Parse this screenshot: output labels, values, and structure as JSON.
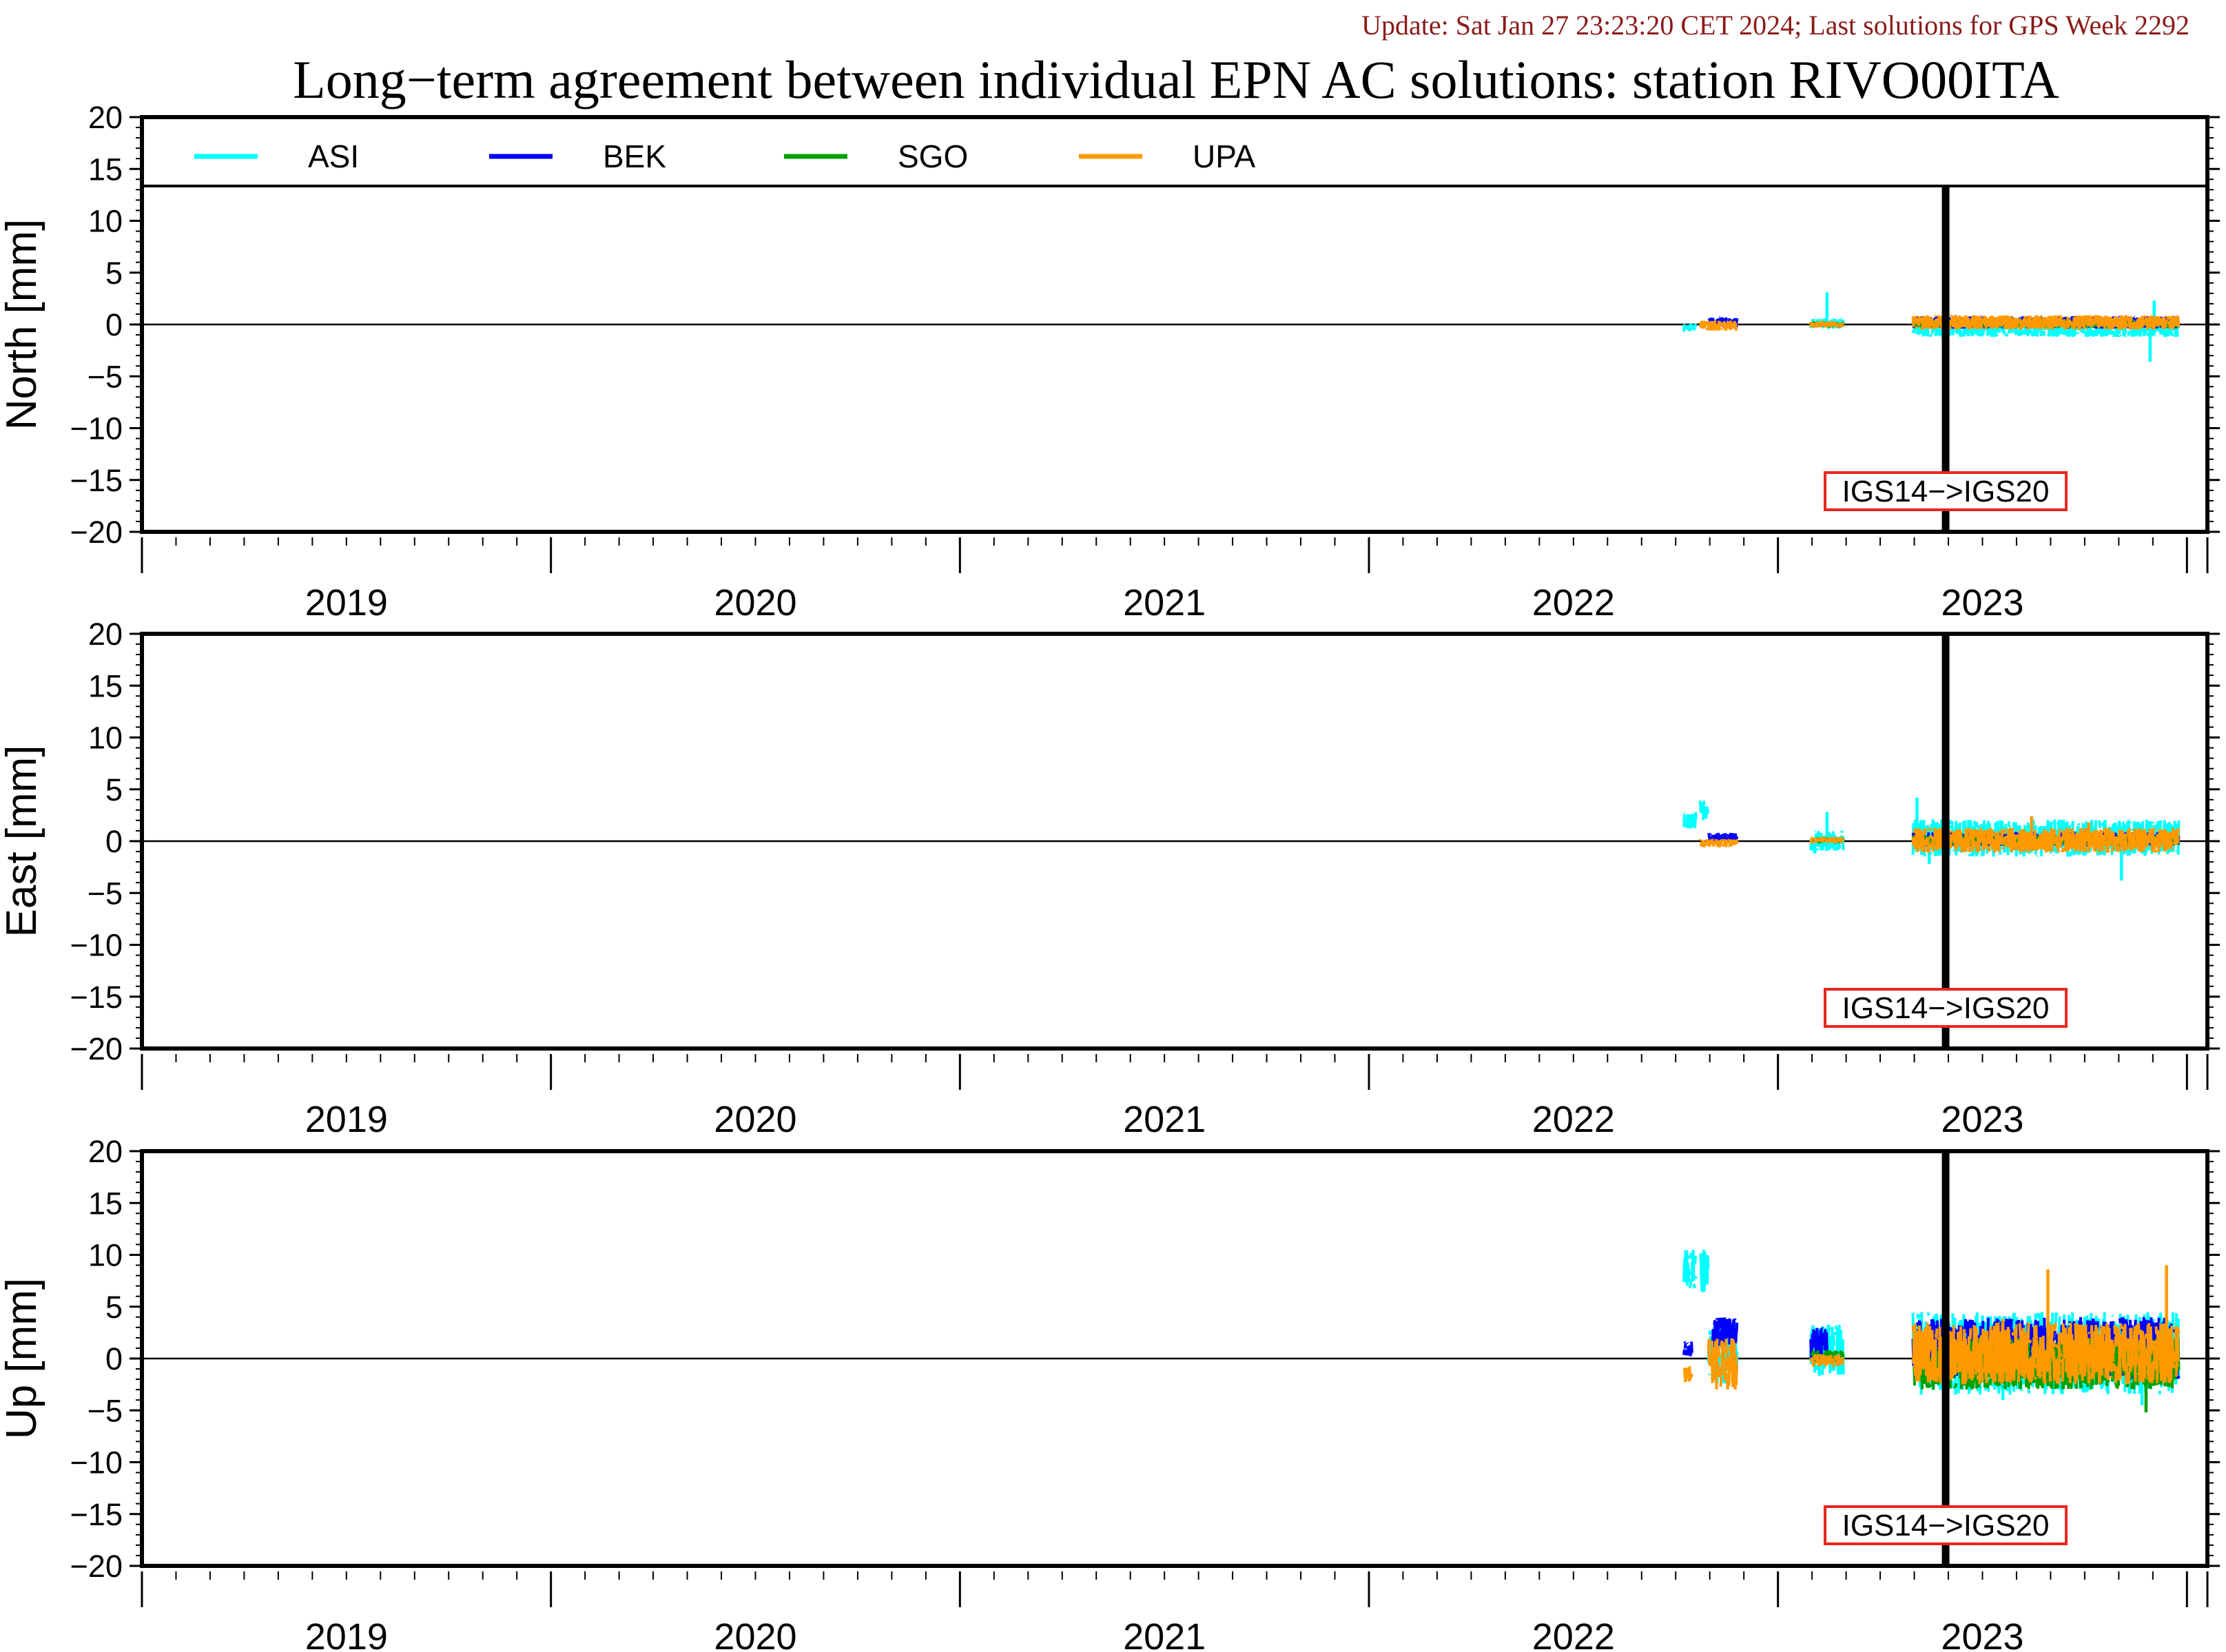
{
  "header": {
    "update": "Update: Sat Jan 27 23:23:20 CET 2024; Last solutions for GPS Week 2292",
    "title": "Long−term agreement between individual EPN AC solutions: station RIVO00ITA"
  },
  "legend": [
    {
      "name": "ASI",
      "color": "#00ffff"
    },
    {
      "name": "BEK",
      "color": "#0000ff"
    },
    {
      "name": "SGO",
      "color": "#00a000"
    },
    {
      "name": "UPA",
      "color": "#ff9900"
    }
  ],
  "marker": {
    "label": "IGS14−>IGS20",
    "date": 2022.91
  },
  "chart_data": [
    {
      "type": "line",
      "component": "North",
      "ylabel": "North [mm]",
      "ylim": [
        -20,
        20
      ],
      "xlim": [
        2018.5,
        2023.55
      ],
      "yticks": [
        20,
        15,
        10,
        5,
        0,
        -5,
        -10,
        -15,
        -20
      ],
      "ytick_labels": [
        "20",
        "15",
        "10",
        "5",
        "0",
        "−5",
        "−10",
        "−15",
        "−20"
      ],
      "year_labels": [
        "2019",
        "2020",
        "2021",
        "2022",
        "2023"
      ],
      "legend_placement": "top-left, inside",
      "series": [
        {
          "name": "ASI",
          "segments": [
            {
              "range": [
                2022.27,
                2022.3
              ],
              "value": -0.3,
              "spread": 0.4
            },
            {
              "range": [
                2022.58,
                2022.66
              ],
              "value": 0.1,
              "spread": 0.5,
              "spikes": [
                [
                  2022.62,
                  3.1
                ]
              ]
            },
            {
              "range": [
                2022.83,
                2023.48
              ],
              "value": -0.4,
              "spread": 0.8,
              "spikes": [
                [
                  2023.41,
                  -3.6
                ],
                [
                  2023.42,
                  2.3
                ]
              ]
            }
          ]
        },
        {
          "name": "BEK",
          "segments": [
            {
              "range": [
                2022.33,
                2022.4
              ],
              "value": 0.2,
              "spread": 0.5
            },
            {
              "range": [
                2022.83,
                2023.48
              ],
              "value": 0.2,
              "spread": 0.6
            }
          ]
        },
        {
          "name": "SGO",
          "segments": [
            {
              "range": [
                2022.58,
                2022.66
              ],
              "value": 0.0,
              "spread": 0.3
            },
            {
              "range": [
                2022.83,
                2023.48
              ],
              "value": 0.1,
              "spread": 0.4
            }
          ]
        },
        {
          "name": "UPA",
          "segments": [
            {
              "range": [
                2022.31,
                2022.4
              ],
              "value": -0.1,
              "spread": 0.5
            },
            {
              "range": [
                2022.58,
                2022.66
              ],
              "value": 0.0,
              "spread": 0.3
            },
            {
              "range": [
                2022.83,
                2023.48
              ],
              "value": 0.2,
              "spread": 0.7
            }
          ]
        }
      ]
    },
    {
      "type": "line",
      "component": "East",
      "ylabel": "East [mm]",
      "ylim": [
        -20,
        20
      ],
      "xlim": [
        2018.5,
        2023.55
      ],
      "yticks": [
        20,
        15,
        10,
        5,
        0,
        -5,
        -10,
        -15,
        -20
      ],
      "ytick_labels": [
        "20",
        "15",
        "10",
        "5",
        "0",
        "−5",
        "−10",
        "−15",
        "−20"
      ],
      "year_labels": [
        "2019",
        "2020",
        "2021",
        "2022",
        "2023"
      ],
      "series": [
        {
          "name": "ASI",
          "segments": [
            {
              "range": [
                2022.27,
                2022.3
              ],
              "value": 2.0,
              "spread": 0.8
            },
            {
              "range": [
                2022.31,
                2022.33
              ],
              "value": 3.0,
              "spread": 1.0
            },
            {
              "range": [
                2022.58,
                2022.66
              ],
              "value": 0.0,
              "spread": 1.0,
              "spikes": [
                [
                  2022.62,
                  2.8
                ],
                [
                  2022.59,
                  -1.2
                ]
              ]
            },
            {
              "range": [
                2022.83,
                2023.48
              ],
              "value": 0.3,
              "spread": 1.8,
              "spikes": [
                [
                  2022.84,
                  4.2
                ],
                [
                  2023.34,
                  -3.8
                ],
                [
                  2022.87,
                  -2.2
                ]
              ]
            }
          ]
        },
        {
          "name": "BEK",
          "segments": [
            {
              "range": [
                2022.33,
                2022.4
              ],
              "value": 0.3,
              "spread": 0.5
            },
            {
              "range": [
                2022.83,
                2023.48
              ],
              "value": 0.2,
              "spread": 0.7
            }
          ]
        },
        {
          "name": "SGO",
          "segments": [
            {
              "range": [
                2022.58,
                2022.66
              ],
              "value": 0.1,
              "spread": 0.3
            },
            {
              "range": [
                2022.83,
                2023.48
              ],
              "value": 0.1,
              "spread": 0.5
            }
          ]
        },
        {
          "name": "UPA",
          "segments": [
            {
              "range": [
                2022.31,
                2022.4
              ],
              "value": -0.2,
              "spread": 0.4
            },
            {
              "range": [
                2022.58,
                2022.66
              ],
              "value": 0.1,
              "spread": 0.3
            },
            {
              "range": [
                2022.83,
                2023.48
              ],
              "value": 0.1,
              "spread": 1.2,
              "spikes": [
                [
                  2023.12,
                  2.4
                ],
                [
                  2023.26,
                  1.8
                ]
              ]
            }
          ]
        }
      ]
    },
    {
      "type": "line",
      "component": "Up",
      "ylabel": "Up [mm]",
      "ylim": [
        -20,
        20
      ],
      "xlim": [
        2018.5,
        2023.55
      ],
      "yticks": [
        20,
        15,
        10,
        5,
        0,
        -5,
        -10,
        -15,
        -20
      ],
      "ytick_labels": [
        "20",
        "15",
        "10",
        "5",
        "0",
        "−5",
        "−10",
        "−15",
        "−20"
      ],
      "year_labels": [
        "2019",
        "2020",
        "2021",
        "2022",
        "2023"
      ],
      "series": [
        {
          "name": "ASI",
          "segments": [
            {
              "range": [
                2022.27,
                2022.3
              ],
              "value": 8.5,
              "spread": 2.0
            },
            {
              "range": [
                2022.31,
                2022.33
              ],
              "value": 8.5,
              "spread": 2.2
            },
            {
              "range": [
                2022.33,
                2022.4
              ],
              "value": 0.5,
              "spread": 3.0
            },
            {
              "range": [
                2022.58,
                2022.66
              ],
              "value": 0.8,
              "spread": 2.5
            },
            {
              "range": [
                2022.83,
                2023.48
              ],
              "value": 0.5,
              "spread": 4.0,
              "spikes": [
                [
                  2023.39,
                  -4.5
                ],
                [
                  2023.05,
                  -4.0
                ]
              ]
            }
          ]
        },
        {
          "name": "BEK",
          "segments": [
            {
              "range": [
                2022.27,
                2022.29
              ],
              "value": 1.0,
              "spread": 0.8
            },
            {
              "range": [
                2022.34,
                2022.4
              ],
              "value": 2.5,
              "spread": 1.5
            },
            {
              "range": [
                2022.58,
                2022.62
              ],
              "value": 1.5,
              "spread": 1.5
            },
            {
              "range": [
                2022.83,
                2023.48
              ],
              "value": 1.0,
              "spread": 3.0
            }
          ]
        },
        {
          "name": "SGO",
          "segments": [
            {
              "range": [
                2022.58,
                2022.66
              ],
              "value": 0.2,
              "spread": 0.6
            },
            {
              "range": [
                2022.83,
                2023.48
              ],
              "value": -0.5,
              "spread": 2.5,
              "spikes": [
                [
                  2023.4,
                  -5.2
                ]
              ]
            }
          ]
        },
        {
          "name": "UPA",
          "segments": [
            {
              "range": [
                2022.27,
                2022.29
              ],
              "value": -1.5,
              "spread": 0.8
            },
            {
              "range": [
                2022.33,
                2022.4
              ],
              "value": -0.5,
              "spread": 2.5
            },
            {
              "range": [
                2022.58,
                2022.66
              ],
              "value": -0.2,
              "spread": 0.6
            },
            {
              "range": [
                2022.83,
                2023.48
              ],
              "value": 0.5,
              "spread": 3.0,
              "spikes": [
                [
                  2023.16,
                  8.6
                ],
                [
                  2023.45,
                  9.0
                ],
                [
                  2023.05,
                  3.8
                ]
              ]
            }
          ]
        }
      ]
    }
  ]
}
